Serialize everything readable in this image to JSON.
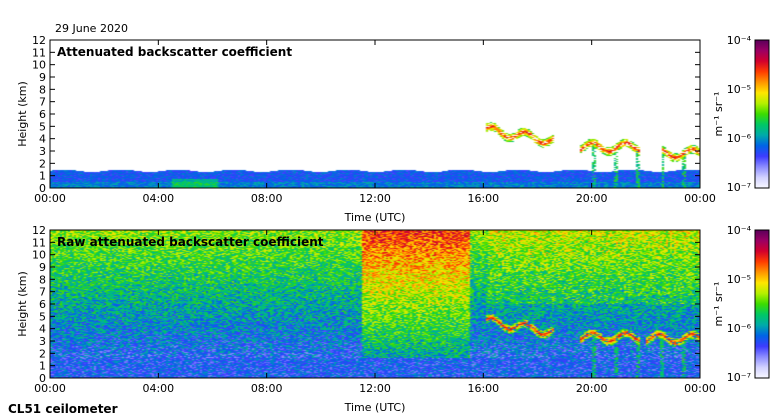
{
  "figure": {
    "date_label": "29 June 2020",
    "instrument_label": "CL51 ceilometer"
  },
  "colorbar": {
    "unit_label": "m⁻¹ sr⁻¹",
    "tick_labels": [
      "10⁻⁴",
      "10⁻⁵",
      "10⁻⁶",
      "10⁻⁷"
    ],
    "colors": [
      "#5a005a",
      "#9b0064",
      "#d2002d",
      "#ff3c00",
      "#ff9600",
      "#ffe600",
      "#b4f000",
      "#3cdc00",
      "#00c864",
      "#00aaaa",
      "#0064e6",
      "#3c3cff",
      "#8c8cff",
      "#d2d2ff",
      "#f8f8ff"
    ]
  },
  "chart_data": [
    {
      "type": "heatmap",
      "title": "Attenuated backscatter coefficient",
      "xlabel": "Time (UTC)",
      "ylabel": "Height (km)",
      "xlim": [
        0,
        24
      ],
      "ylim": [
        0,
        12
      ],
      "x_tick_labels": [
        "00:00",
        "04:00",
        "08:00",
        "12:00",
        "16:00",
        "20:00",
        "00:00"
      ],
      "y_tick_labels": [
        "0",
        "1",
        "2",
        "3",
        "4",
        "5",
        "6",
        "7",
        "8",
        "9",
        "10",
        "11",
        "12"
      ],
      "colorscale_range": [
        1e-07,
        0.0001
      ],
      "colorscale": "log",
      "features": {
        "boundary_layer_top_km": 1.4,
        "cloud_layers": [
          {
            "t_start": 16.1,
            "t_end": 18.6,
            "h_km": 4.7
          },
          {
            "t_start": 19.6,
            "t_end": 21.8,
            "h_km": 3.3
          },
          {
            "t_start": 22.6,
            "t_end": 24.0,
            "h_km": 2.8
          }
        ]
      }
    },
    {
      "type": "heatmap",
      "title": "Raw attenuated backscatter coefficient",
      "xlabel": "Time (UTC)",
      "ylabel": "Height (km)",
      "xlim": [
        0,
        24
      ],
      "ylim": [
        0,
        12
      ],
      "x_tick_labels": [
        "00:00",
        "04:00",
        "08:00",
        "12:00",
        "16:00",
        "20:00",
        "00:00"
      ],
      "y_tick_labels": [
        "0",
        "1",
        "2",
        "3",
        "4",
        "5",
        "6",
        "7",
        "8",
        "9",
        "10",
        "11",
        "12"
      ],
      "colorscale_range": [
        1e-07,
        0.0001
      ],
      "colorscale": "log",
      "features": {
        "boundary_layer_top_km": 1.6,
        "noise_peak_hours": [
          11.5,
          15.5
        ],
        "cloud_layers": [
          {
            "t_start": 16.1,
            "t_end": 18.6,
            "h_km": 4.6
          },
          {
            "t_start": 19.6,
            "t_end": 21.8,
            "h_km": 3.3
          },
          {
            "t_start": 22.0,
            "t_end": 24.0,
            "h_km": 3.2
          }
        ]
      }
    }
  ]
}
